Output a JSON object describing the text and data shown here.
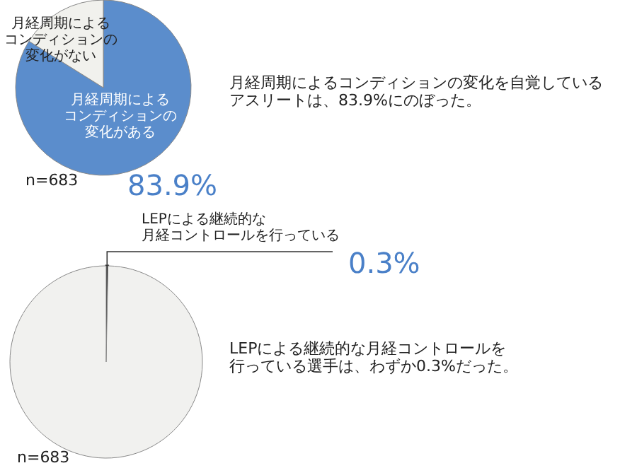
{
  "chart_data": [
    {
      "type": "pie",
      "categories": [
        "月経周期によるコンディションの変化がある",
        "月経周期によるコンディションの変化がない"
      ],
      "values": [
        83.9,
        16.1
      ],
      "colors": [
        "#5b8dcc",
        "#f1f1ed"
      ],
      "value_labels": [
        "83.9%",
        null
      ],
      "annotations": [
        "月経周期によるコンディションの変化を自覚しているアスリートは、83.9%にのぼった。",
        "n=683"
      ]
    },
    {
      "type": "pie",
      "categories": [
        "LEPによる継続的な月経コントロールを行っている",
        null
      ],
      "values": [
        0.3,
        99.7
      ],
      "colors": [
        "#333333",
        "#f1f1ef"
      ],
      "value_labels": [
        "0.3%",
        null
      ],
      "annotations": [
        "LEPによる継続的な月経コントロールを行っている選手は、わずか0.3%だった。",
        "n=683"
      ]
    }
  ]
}
